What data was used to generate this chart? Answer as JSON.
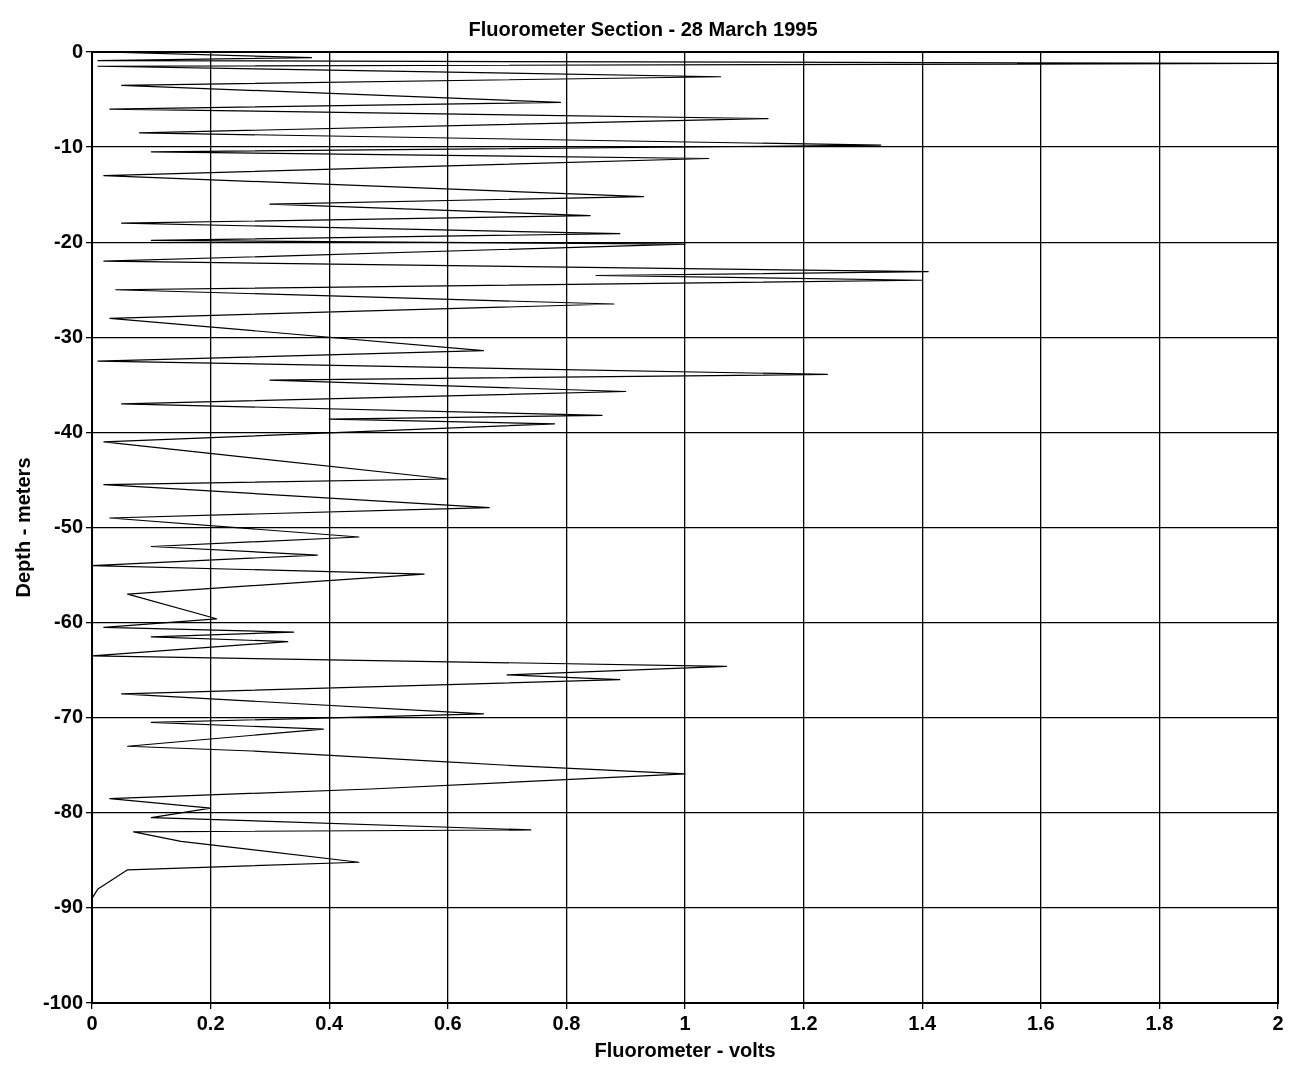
{
  "chart_data": {
    "type": "line",
    "title": "Fluorometer Section - 28 March 1995",
    "xlabel": "Fluorometer - volts",
    "ylabel": "Depth - meters",
    "xlim": [
      0,
      2
    ],
    "xticks": [
      0,
      0.2,
      0.4,
      0.6,
      0.8,
      1,
      1.2,
      1.4,
      1.6,
      1.8,
      2
    ],
    "ylim": [
      -100,
      0
    ],
    "yticks": [
      -100,
      -90,
      -80,
      -70,
      -60,
      -50,
      -40,
      -30,
      -20,
      -10,
      0
    ],
    "grid": true,
    "legend": false,
    "marker": "none",
    "line_style": "solid",
    "series": [
      {
        "color": "#000000",
        "x": [
          0.02,
          0.37,
          0.01,
          2.0,
          0.01,
          1.06,
          0.05,
          0.79,
          0.03,
          1.14,
          0.08,
          1.33,
          0.1,
          1.04,
          0.02,
          0.93,
          0.3,
          0.84,
          0.05,
          0.89,
          0.1,
          1.0,
          0.02,
          1.41,
          0.85,
          1.4,
          0.04,
          0.88,
          0.03,
          0.66,
          0.01,
          1.24,
          0.3,
          0.9,
          0.05,
          0.86,
          0.4,
          0.78,
          0.02,
          0.6,
          0.02,
          0.67,
          0.03,
          0.45,
          0.1,
          0.38,
          0.0,
          0.56,
          0.06,
          0.21,
          0.02,
          0.34,
          0.1,
          0.33,
          0.0,
          1.07,
          0.7,
          0.89,
          0.05,
          0.66,
          0.1,
          0.39,
          0.06,
          0.27,
          0.7,
          1.0,
          0.47,
          0.03,
          0.2,
          0.1,
          0.74,
          0.07,
          0.15,
          0.45,
          0.06,
          0.01,
          0.0
        ],
        "values": [
          0,
          -0.6,
          -0.9,
          -1.2,
          -1.5,
          -2.6,
          -3.5,
          -5.3,
          -6,
          -7.0,
          -8.5,
          -9.8,
          -10.5,
          -11.2,
          -13,
          -15.2,
          -16,
          -17.2,
          -18,
          -19.1,
          -19.8,
          -20.2,
          -22,
          -23.1,
          -23.5,
          -24.0,
          -25,
          -26.5,
          -28,
          -31.4,
          -32.5,
          -33.9,
          -34.5,
          -35.7,
          -37,
          -38.2,
          -38.6,
          -39.1,
          -41,
          -44.9,
          -45.5,
          -47.9,
          -49,
          -51.0,
          -52,
          -52.9,
          -54,
          -54.9,
          -57,
          -59.6,
          -60.5,
          -61.0,
          -61.5,
          -62.0,
          -63.5,
          -64.6,
          -65.5,
          -66.0,
          -67.5,
          -69.6,
          -70.5,
          -71.2,
          -73,
          -73.5,
          -75,
          -75.9,
          -77.5,
          -78.5,
          -79.5,
          -80.5,
          -81.8,
          -82,
          -83,
          -85.2,
          -86,
          -88,
          -89
        ]
      }
    ]
  }
}
